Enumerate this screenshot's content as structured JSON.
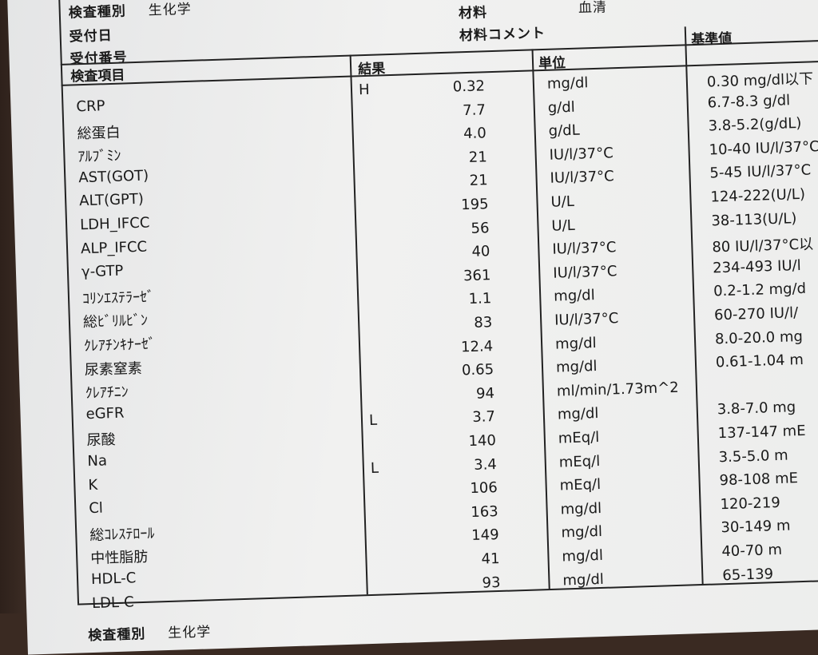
{
  "header": {
    "exam_type_label": "検査種別",
    "exam_type": "生化学",
    "received_date_label": "受付日",
    "received_no_label": "受付番号",
    "material_label": "材料",
    "material": "血清",
    "material_comment_label": "材料コメント"
  },
  "columns": {
    "item": "検査項目",
    "result": "結果",
    "unit": "単位",
    "reference": "基準値"
  },
  "rows": [
    {
      "item": "CRP",
      "flag": "H",
      "result": "0.32",
      "unit": "mg/dl",
      "ref": "0.30 mg/dl以下"
    },
    {
      "item": "総蛋白",
      "flag": "",
      "result": "7.7",
      "unit": "g/dl",
      "ref": "6.7-8.3 g/dl"
    },
    {
      "item": "ｱﾙﾌﾞﾐﾝ",
      "flag": "",
      "result": "4.0",
      "unit": "g/dL",
      "ref": "3.8-5.2(g/dL)"
    },
    {
      "item": "AST(GOT)",
      "flag": "",
      "result": "21",
      "unit": "IU/l/37°C",
      "ref": "10-40 IU/l/37°C"
    },
    {
      "item": "ALT(GPT)",
      "flag": "",
      "result": "21",
      "unit": "IU/l/37°C",
      "ref": "5-45 IU/l/37°C"
    },
    {
      "item": "LDH_IFCC",
      "flag": "",
      "result": "195",
      "unit": "U/L",
      "ref": "124-222(U/L)"
    },
    {
      "item": "ALP_IFCC",
      "flag": "",
      "result": "56",
      "unit": "U/L",
      "ref": "38-113(U/L)"
    },
    {
      "item": "γ-GTP",
      "flag": "",
      "result": "40",
      "unit": "IU/l/37°C",
      "ref": "80 IU/l/37°C以"
    },
    {
      "item": "ｺﾘﾝｴｽﾃﾗｰｾﾞ",
      "flag": "",
      "result": "361",
      "unit": "IU/l/37°C",
      "ref": "234-493 IU/l"
    },
    {
      "item": "総ﾋﾞﾘﾙﾋﾞﾝ",
      "flag": "",
      "result": "1.1",
      "unit": "mg/dl",
      "ref": "0.2-1.2 mg/d"
    },
    {
      "item": "ｸﾚｱﾁﾝｷﾅｰｾﾞ",
      "flag": "",
      "result": "83",
      "unit": "IU/l/37°C",
      "ref": "60-270 IU/l/"
    },
    {
      "item": "尿素窒素",
      "flag": "",
      "result": "12.4",
      "unit": "mg/dl",
      "ref": "8.0-20.0 mg"
    },
    {
      "item": "ｸﾚｱﾁﾆﾝ",
      "flag": "",
      "result": "0.65",
      "unit": "mg/dl",
      "ref": "0.61-1.04 m"
    },
    {
      "item": "eGFR",
      "flag": "",
      "result": "94",
      "unit": "ml/min/1.73m^2",
      "ref": ""
    },
    {
      "item": "尿酸",
      "flag": "L",
      "result": "3.7",
      "unit": "mg/dl",
      "ref": "3.8-7.0 mg"
    },
    {
      "item": "Na",
      "flag": "",
      "result": "140",
      "unit": "mEq/l",
      "ref": "137-147 mE"
    },
    {
      "item": "K",
      "flag": "L",
      "result": "3.4",
      "unit": "mEq/l",
      "ref": "3.5-5.0 m"
    },
    {
      "item": "Cl",
      "flag": "",
      "result": "106",
      "unit": "mEq/l",
      "ref": "98-108 mE"
    },
    {
      "item": "総ｺﾚｽﾃﾛｰﾙ",
      "flag": "",
      "result": "163",
      "unit": "mg/dl",
      "ref": "120-219"
    },
    {
      "item": "中性脂肪",
      "flag": "",
      "result": "149",
      "unit": "mg/dl",
      "ref": "30-149 m"
    },
    {
      "item": "HDL-C",
      "flag": "",
      "result": "41",
      "unit": "mg/dl",
      "ref": "40-70 m"
    },
    {
      "item": "LDL-C",
      "flag": "",
      "result": "93",
      "unit": "mg/dl",
      "ref": "65-139"
    }
  ],
  "footer": {
    "exam_type_label": "検査種別",
    "exam_type": "生化学"
  }
}
